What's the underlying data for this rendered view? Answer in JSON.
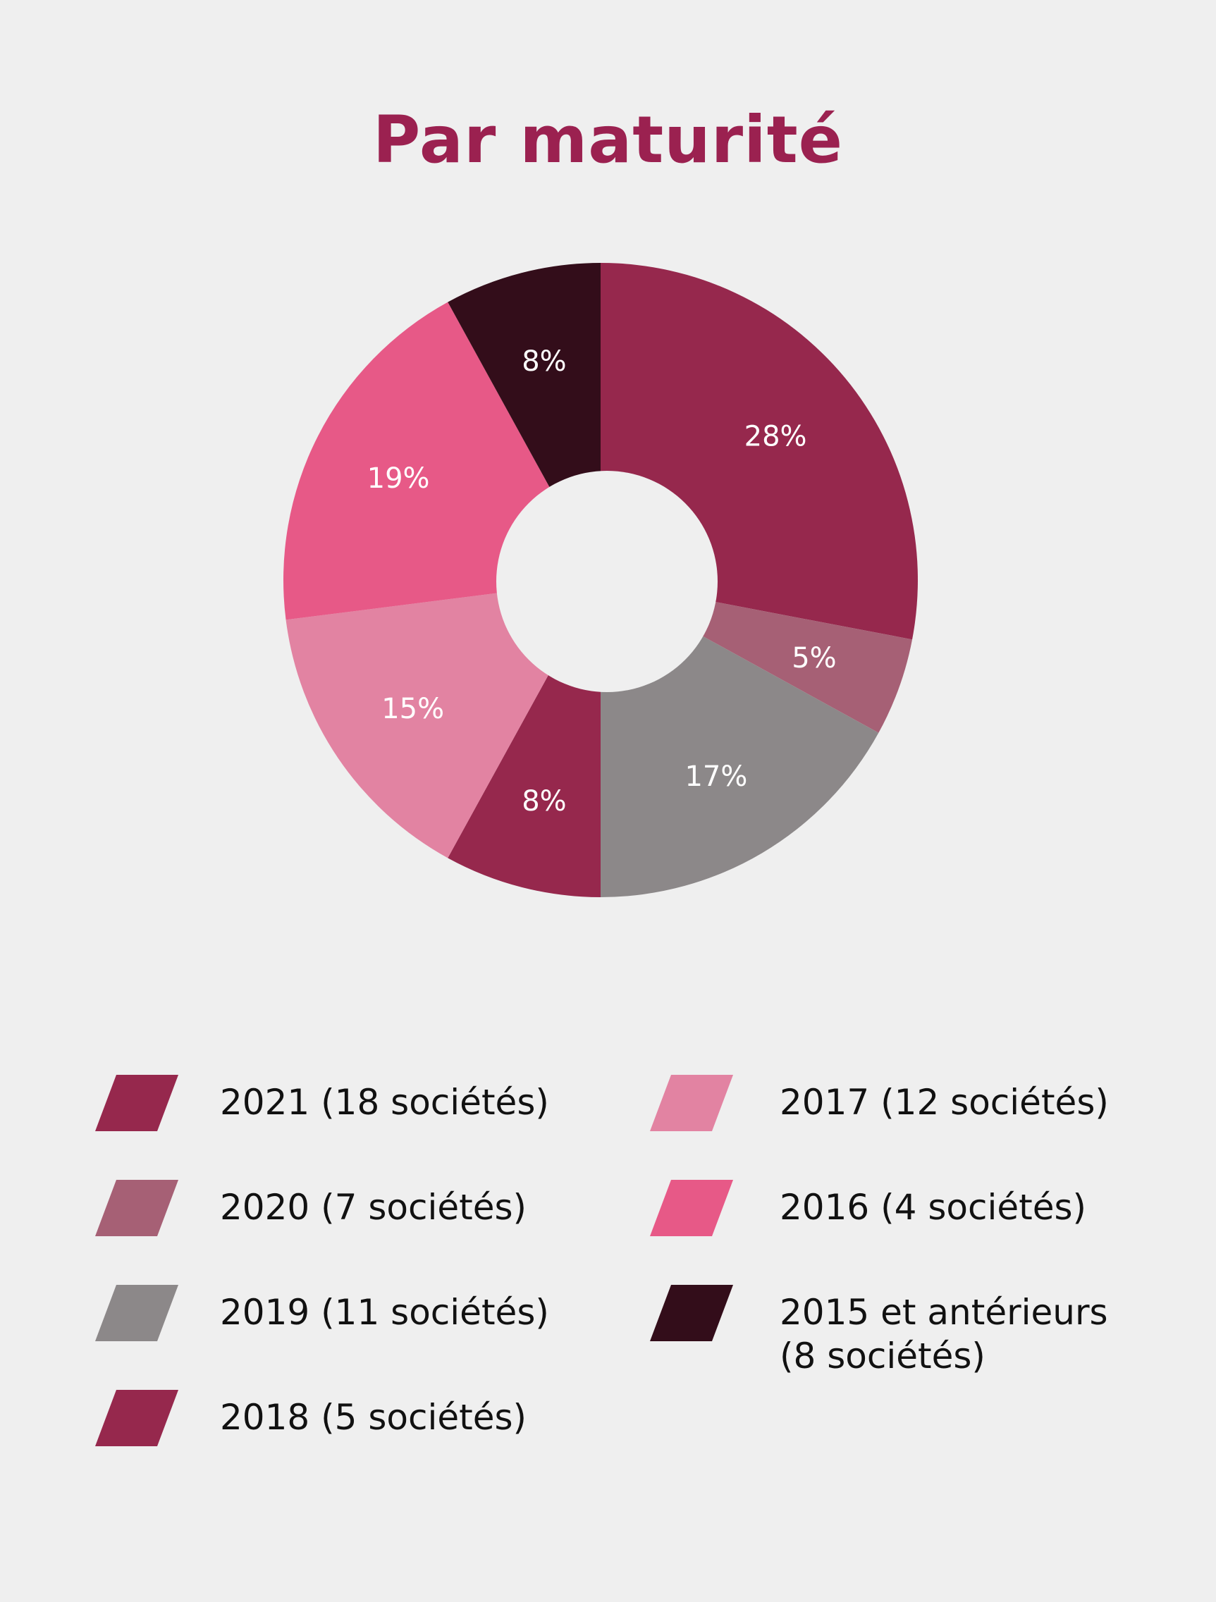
{
  "chart_data": {
    "type": "pie",
    "variant": "donut",
    "title": "Par maturité",
    "start": "top",
    "direction": "clockwise",
    "slices": [
      {
        "label": "2021 (18 sociétés)",
        "value": 28,
        "display": "28%",
        "color": "#96284d"
      },
      {
        "label": "2020 (7 sociétés)",
        "value": 5,
        "display": "5%",
        "color": "#a66075"
      },
      {
        "label": "2019 (11 sociétés)",
        "value": 17,
        "display": "17%",
        "color": "#8c8889"
      },
      {
        "label": "2018 (5 sociétés)",
        "value": 8,
        "display": "8%",
        "color": "#96284d"
      },
      {
        "label": "2017 (12 sociétés)",
        "value": 15,
        "display": "15%",
        "color": "#e283a2"
      },
      {
        "label": "2016 (4 sociétés)",
        "value": 19,
        "display": "19%",
        "color": "#e75987"
      },
      {
        "label": "2015 et antérieurs\n(8 sociétés)",
        "value": 8,
        "display": "8%",
        "color": "#330d1a"
      }
    ],
    "legend_position": "bottom"
  }
}
